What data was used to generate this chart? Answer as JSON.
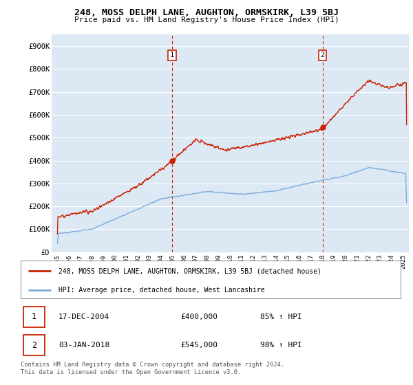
{
  "title": "248, MOSS DELPH LANE, AUGHTON, ORMSKIRK, L39 5BJ",
  "subtitle": "Price paid vs. HM Land Registry's House Price Index (HPI)",
  "ylabel_ticks": [
    "£0",
    "£100K",
    "£200K",
    "£300K",
    "£400K",
    "£500K",
    "£600K",
    "£700K",
    "£800K",
    "£900K"
  ],
  "ytick_values": [
    0,
    100000,
    200000,
    300000,
    400000,
    500000,
    600000,
    700000,
    800000,
    900000
  ],
  "ylim": [
    0,
    950000
  ],
  "xlim_start": 1994.5,
  "xlim_end": 2025.5,
  "hpi_color": "#7aabdb",
  "price_color": "#cc2200",
  "marker1_x": 2004.96,
  "marker1_y": 400000,
  "marker2_x": 2018.02,
  "marker2_y": 545000,
  "marker1_label": "17-DEC-2004",
  "marker1_price": "£400,000",
  "marker1_hpi": "85% ↑ HPI",
  "marker2_label": "03-JAN-2018",
  "marker2_price": "£545,000",
  "marker2_hpi": "98% ↑ HPI",
  "legend_line1": "248, MOSS DELPH LANE, AUGHTON, ORMSKIRK, L39 5BJ (detached house)",
  "legend_line2": "HPI: Average price, detached house, West Lancashire",
  "footer": "Contains HM Land Registry data © Crown copyright and database right 2024.\nThis data is licensed under the Open Government Licence v3.0.",
  "bg_color": "#ffffff",
  "plot_bg_color": "#dce9f5"
}
